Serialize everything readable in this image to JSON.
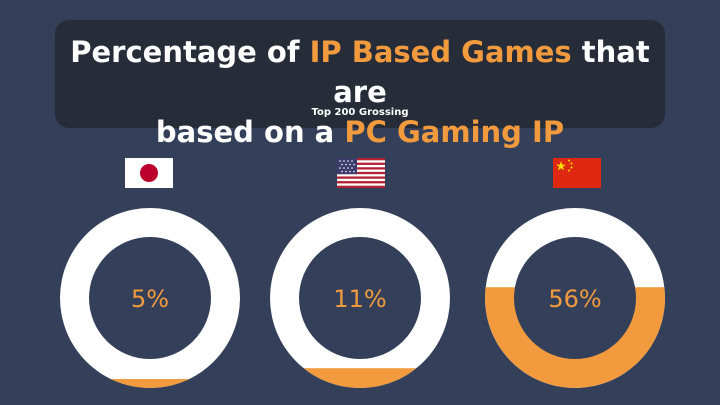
{
  "header": {
    "title_parts": [
      {
        "text": "Percentage of ",
        "highlight": false
      },
      {
        "text": "IP Based Games",
        "highlight": true
      },
      {
        "text": " that are",
        "highlight": false
      },
      {
        "br": true
      },
      {
        "text": "based on a ",
        "highlight": false
      },
      {
        "text": "PC Gaming IP",
        "highlight": true
      }
    ],
    "subtitle": "Top 200 Grossing"
  },
  "flags": [
    {
      "name": "japan-flag-icon",
      "country": "Japan"
    },
    {
      "name": "usa-flag-icon",
      "country": "United States"
    },
    {
      "name": "china-flag-icon",
      "country": "China"
    }
  ],
  "colors": {
    "background": "#34405a",
    "title_box": "#262c38",
    "accent": "#f19a3e",
    "ring": "#ffffff"
  },
  "chart_data": {
    "type": "pie",
    "title": "Percentage of IP Based Games that are based on a PC Gaming IP",
    "subtitle": "Top 200 Grossing",
    "categories": [
      "Japan",
      "United States",
      "China"
    ],
    "values": [
      5,
      11,
      56
    ],
    "labels": [
      "5%",
      "11%",
      "56%"
    ],
    "unit": "%"
  }
}
